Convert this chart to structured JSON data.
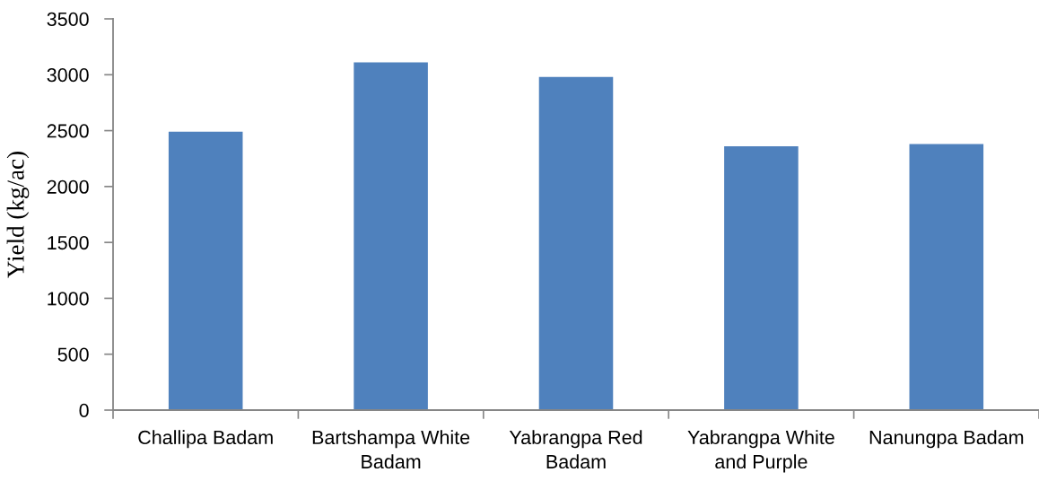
{
  "chart_data": {
    "type": "bar",
    "ylabel": "Yield (kg/ac)",
    "categories": [
      "Challipa Badam",
      "Bartshampa White Badam",
      "Yabrangpa Red Badam",
      "Yabrangpa White and Purple",
      "Nanungpa Badam"
    ],
    "values": [
      2490,
      3110,
      2980,
      2360,
      2380
    ],
    "color": "#4f81bd",
    "ylim": [
      0,
      3500
    ],
    "yticks": [
      0,
      500,
      1000,
      1500,
      2000,
      2500,
      3000,
      3500
    ]
  }
}
